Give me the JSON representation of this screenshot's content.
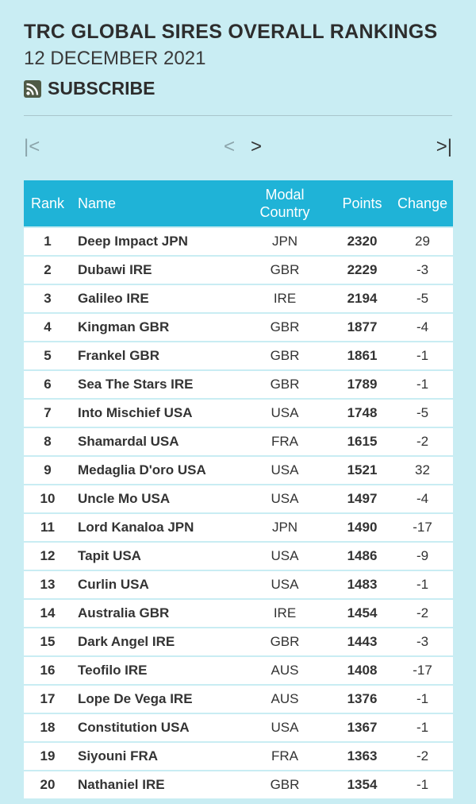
{
  "header": {
    "title": "TRC GLOBAL SIRES OVERALL RANKINGS",
    "date": "12 DECEMBER 2021",
    "subscribe_label": "SUBSCRIBE"
  },
  "pagination": {
    "first": "|<",
    "prev": "<",
    "next": ">",
    "last": ">|"
  },
  "table": {
    "columns": {
      "rank": "Rank",
      "name": "Name",
      "country_line1": "Modal",
      "country_line2": "Country",
      "points": "Points",
      "change": "Change"
    },
    "rows": [
      {
        "rank": "1",
        "name": "Deep Impact JPN",
        "country": "JPN",
        "points": "2320",
        "change": "29"
      },
      {
        "rank": "2",
        "name": "Dubawi IRE",
        "country": "GBR",
        "points": "2229",
        "change": "-3"
      },
      {
        "rank": "3",
        "name": "Galileo IRE",
        "country": "IRE",
        "points": "2194",
        "change": "-5"
      },
      {
        "rank": "4",
        "name": "Kingman GBR",
        "country": "GBR",
        "points": "1877",
        "change": "-4"
      },
      {
        "rank": "5",
        "name": "Frankel GBR",
        "country": "GBR",
        "points": "1861",
        "change": "-1"
      },
      {
        "rank": "6",
        "name": "Sea The Stars IRE",
        "country": "GBR",
        "points": "1789",
        "change": "-1"
      },
      {
        "rank": "7",
        "name": "Into Mischief USA",
        "country": "USA",
        "points": "1748",
        "change": "-5"
      },
      {
        "rank": "8",
        "name": "Shamardal USA",
        "country": "FRA",
        "points": "1615",
        "change": "-2"
      },
      {
        "rank": "9",
        "name": "Medaglia D'oro USA",
        "country": "USA",
        "points": "1521",
        "change": "32"
      },
      {
        "rank": "10",
        "name": "Uncle Mo USA",
        "country": "USA",
        "points": "1497",
        "change": "-4"
      },
      {
        "rank": "11",
        "name": "Lord Kanaloa JPN",
        "country": "JPN",
        "points": "1490",
        "change": "-17"
      },
      {
        "rank": "12",
        "name": "Tapit USA",
        "country": "USA",
        "points": "1486",
        "change": "-9"
      },
      {
        "rank": "13",
        "name": "Curlin USA",
        "country": "USA",
        "points": "1483",
        "change": "-1"
      },
      {
        "rank": "14",
        "name": "Australia GBR",
        "country": "IRE",
        "points": "1454",
        "change": "-2"
      },
      {
        "rank": "15",
        "name": "Dark Angel IRE",
        "country": "GBR",
        "points": "1443",
        "change": "-3"
      },
      {
        "rank": "16",
        "name": "Teofilo IRE",
        "country": "AUS",
        "points": "1408",
        "change": "-17"
      },
      {
        "rank": "17",
        "name": "Lope De Vega IRE",
        "country": "AUS",
        "points": "1376",
        "change": "-1"
      },
      {
        "rank": "18",
        "name": "Constitution USA",
        "country": "USA",
        "points": "1367",
        "change": "-1"
      },
      {
        "rank": "19",
        "name": "Siyouni FRA",
        "country": "FRA",
        "points": "1363",
        "change": "-2"
      },
      {
        "rank": "20",
        "name": "Nathaniel IRE",
        "country": "GBR",
        "points": "1354",
        "change": "-1"
      }
    ]
  },
  "colors": {
    "background": "#c9edf3",
    "header_row": "#1fb3d7",
    "rss_icon": "#4f5a45"
  }
}
